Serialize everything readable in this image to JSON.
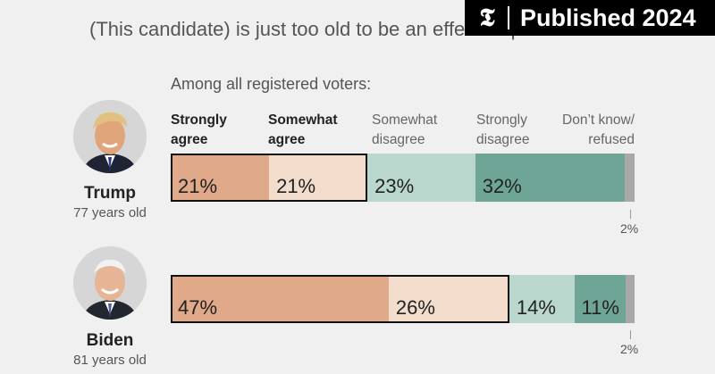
{
  "question": "(This candidate) is just too old to be an effective president.",
  "badge": {
    "logo_glyph": "𝕿",
    "label": "Published 2024"
  },
  "subtitle": "Among all registered voters:",
  "categories": [
    {
      "line1": "Strongly",
      "line2": "agree"
    },
    {
      "line1": "Somewhat",
      "line2": "agree"
    },
    {
      "line1": "Somewhat",
      "line2": "disagree"
    },
    {
      "line1": "Strongly",
      "line2": "disagree"
    },
    {
      "line1": "Don’t know/",
      "line2": "refused"
    }
  ],
  "colors": {
    "strongly_agree": "#dfa98a",
    "somewhat_agree": "#f2dccb",
    "somewhat_disagree": "#b9d7cc",
    "strongly_disagree": "#6fa597",
    "dont_know": "#a8a8a8"
  },
  "chart_data": {
    "type": "bar",
    "stacked": true,
    "orientation": "horizontal",
    "title": "(This candidate) is just too old to be an effective president.",
    "subtitle": "Among all registered voters:",
    "categories": [
      "Trump",
      "Biden"
    ],
    "candidates": [
      {
        "name": "Trump",
        "age_label": "77 years old"
      },
      {
        "name": "Biden",
        "age_label": "81 years old"
      }
    ],
    "series": [
      {
        "name": "Strongly agree",
        "values": [
          21,
          47
        ],
        "labels": [
          "21%",
          "47%"
        ]
      },
      {
        "name": "Somewhat agree",
        "values": [
          21,
          26
        ],
        "labels": [
          "21%",
          "26%"
        ]
      },
      {
        "name": "Somewhat disagree",
        "values": [
          23,
          14
        ],
        "labels": [
          "23%",
          "14%"
        ]
      },
      {
        "name": "Strongly disagree",
        "values": [
          32,
          11
        ],
        "labels": [
          "32%",
          "11%"
        ]
      },
      {
        "name": "Don’t know/refused",
        "values": [
          2,
          2
        ],
        "labels": [
          "2%",
          "2%"
        ]
      }
    ],
    "xlim": [
      0,
      100
    ]
  }
}
